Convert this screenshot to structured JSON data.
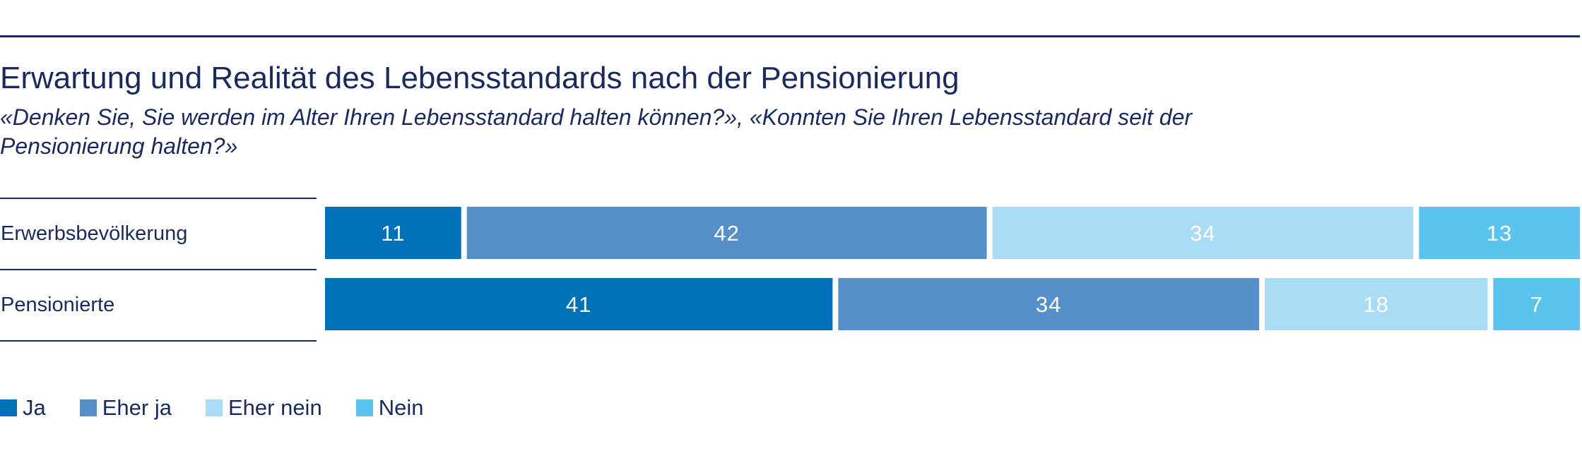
{
  "chart_data": {
    "type": "bar",
    "orientation": "horizontal",
    "stacked": true,
    "title": "Erwartung und Realität des Lebensstandards nach der Pensionierung",
    "subtitle": "«Denken Sie, Sie werden im Alter Ihren Lebensstandard halten können?», «Konnten Sie Ihren Lebensstandard seit der Pensionierung halten?»",
    "categories": [
      "Erwerbsbevölkerung",
      "Pensionierte"
    ],
    "series": [
      {
        "name": "Ja",
        "color": "#0070b8",
        "values": [
          11,
          41
        ]
      },
      {
        "name": "Eher ja",
        "color": "#5590c8",
        "values": [
          42,
          34
        ]
      },
      {
        "name": "Eher nein",
        "color": "#aadcf6",
        "values": [
          34,
          18
        ]
      },
      {
        "name": "Nein",
        "color": "#5bc4ee",
        "values": [
          13,
          7
        ]
      }
    ],
    "xlim": [
      0,
      100
    ],
    "legend_position": "bottom-left",
    "grid": false
  }
}
